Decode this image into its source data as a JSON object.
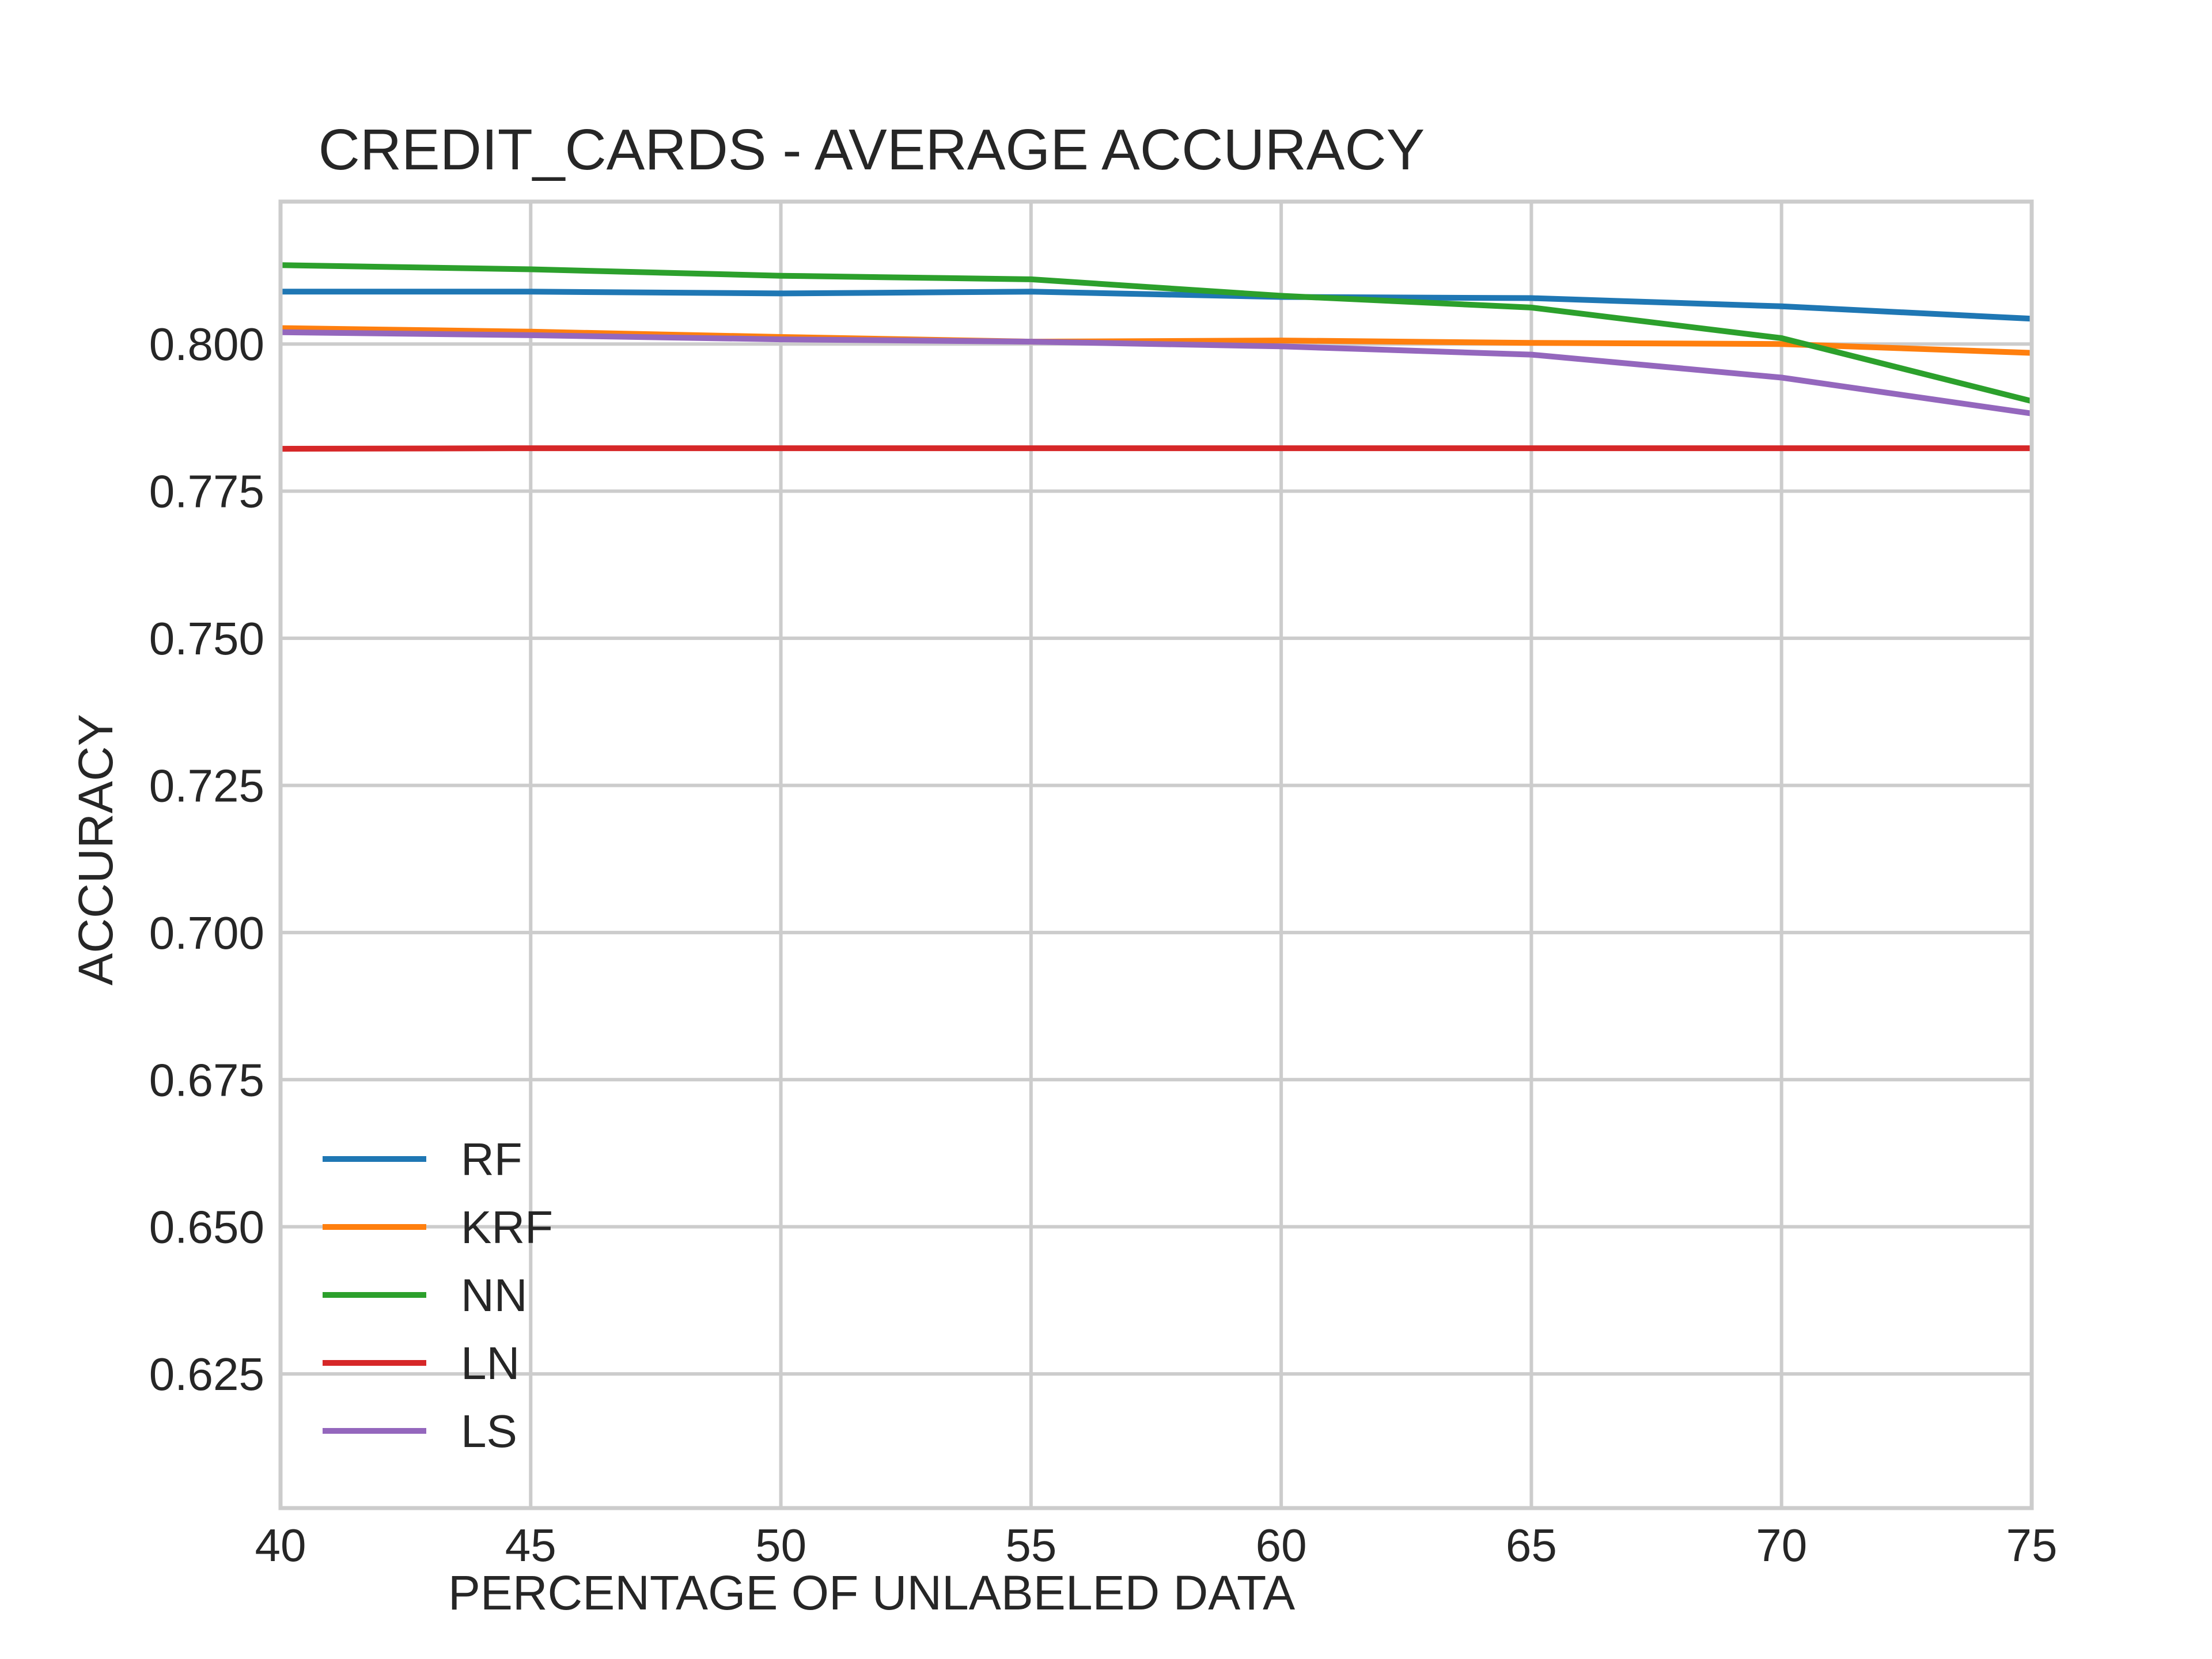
{
  "chart_data": {
    "type": "line",
    "title": "CREDIT_CARDS - AVERAGE ACCURACY",
    "xlabel": "PERCENTAGE OF UNLABELED DATA",
    "ylabel": "ACCURACY",
    "x": [
      40,
      45,
      50,
      55,
      60,
      65,
      70,
      75
    ],
    "xlim": [
      40,
      75
    ],
    "ylim": [
      0.6022,
      0.8242
    ],
    "xticks": [
      40,
      45,
      50,
      55,
      60,
      65,
      70,
      75
    ],
    "yticks": [
      0.625,
      0.65,
      0.675,
      0.7,
      0.725,
      0.75,
      0.775,
      0.8
    ],
    "grid": true,
    "legend_position": "lower-left",
    "series": [
      {
        "name": "RF",
        "color": "#1f77b4",
        "values": [
          0.8089,
          0.8089,
          0.8086,
          0.8089,
          0.808,
          0.8078,
          0.8064,
          0.8043
        ]
      },
      {
        "name": "KRF",
        "color": "#ff7f0e",
        "values": [
          0.8027,
          0.8021,
          0.8012,
          0.8004,
          0.8006,
          0.8002,
          0.8,
          0.7985
        ]
      },
      {
        "name": "NN",
        "color": "#2ca02c",
        "values": [
          0.8134,
          0.8127,
          0.8116,
          0.811,
          0.8082,
          0.8062,
          0.801,
          0.7903
        ]
      },
      {
        "name": "LN",
        "color": "#d62728",
        "values": [
          0.7822,
          0.7823,
          0.7823,
          0.7823,
          0.7823,
          0.7823,
          0.7823,
          0.7823
        ]
      },
      {
        "name": "LS",
        "color": "#9467bd",
        "values": [
          0.802,
          0.8015,
          0.8008,
          0.8004,
          0.7996,
          0.7982,
          0.7943,
          0.7882
        ]
      }
    ]
  }
}
